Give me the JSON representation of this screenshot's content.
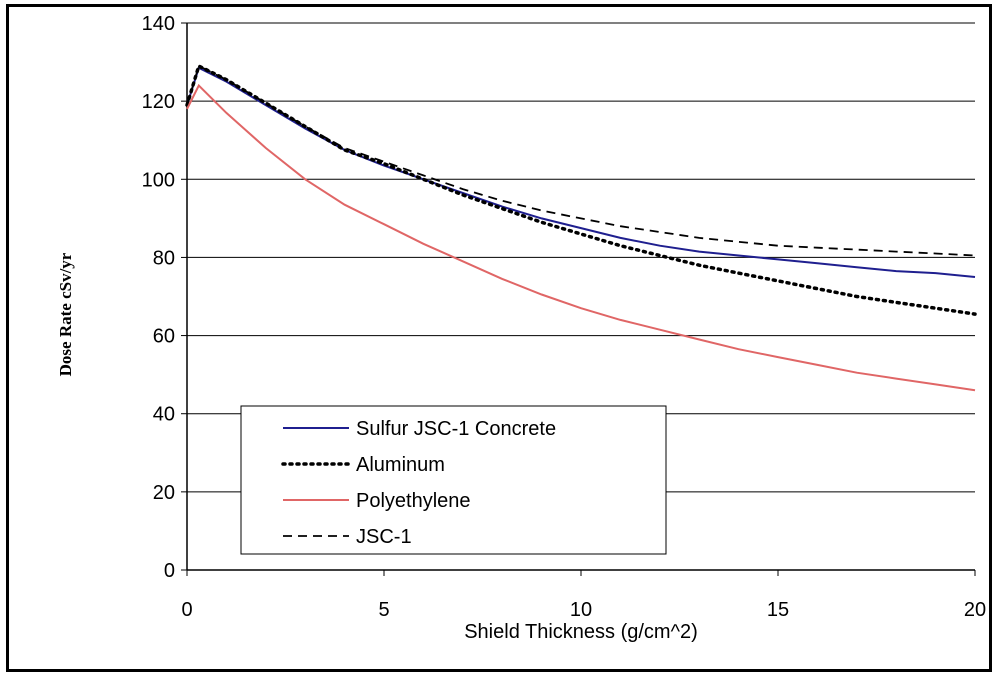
{
  "chart_data": {
    "type": "line",
    "xlabel": "Shield Thickness (g/cm^2)",
    "ylabel": "Dose Rate cSv/yr",
    "xlim": [
      0,
      20
    ],
    "ylim": [
      0,
      140
    ],
    "xticks": [
      0,
      5,
      10,
      15,
      20
    ],
    "yticks": [
      0,
      20,
      40,
      60,
      80,
      100,
      120,
      140
    ],
    "grid": "horizontal",
    "legend_position": "bottom-left",
    "x": [
      0,
      0.3,
      1,
      2,
      3,
      4,
      5,
      6,
      7,
      8,
      9,
      10,
      11,
      12,
      13,
      14,
      15,
      16,
      17,
      18,
      19,
      20
    ],
    "series": [
      {
        "name": "Sulfur JSC-1 Concrete",
        "color": "#1f1f8f",
        "style": "solid",
        "values": [
          119,
          128.5,
          125,
          119,
          113,
          107.5,
          103.5,
          100,
          96.5,
          93,
          90,
          87.5,
          85,
          83,
          81.5,
          80.5,
          79.5,
          78.5,
          77.5,
          76.5,
          76,
          75
        ]
      },
      {
        "name": "Aluminum",
        "color": "#000000",
        "style": "dotted",
        "values": [
          119,
          129,
          125.5,
          119.5,
          113.5,
          107.5,
          104,
          100,
          96,
          92.5,
          89,
          86,
          83,
          80.5,
          78,
          76,
          74,
          72,
          70,
          68.5,
          67,
          65.5
        ]
      },
      {
        "name": "Polyethylene",
        "color": "#e06666",
        "style": "solid",
        "values": [
          118,
          124,
          117,
          108,
          100,
          93.5,
          88.5,
          83.5,
          79,
          74.5,
          70.5,
          67,
          64,
          61.5,
          59,
          56.5,
          54.5,
          52.5,
          50.5,
          49,
          47.5,
          46
        ]
      },
      {
        "name": "JSC-1",
        "color": "#000000",
        "style": "dashed",
        "values": [
          119,
          129,
          125.5,
          119.5,
          113.5,
          108,
          104.5,
          101,
          97.5,
          94.5,
          92,
          90,
          88,
          86.5,
          85,
          84,
          83,
          82.5,
          82,
          81.5,
          81,
          80.5
        ]
      }
    ]
  }
}
